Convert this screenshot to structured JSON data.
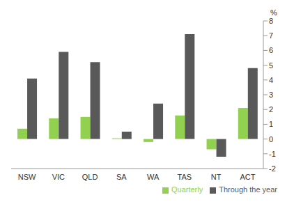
{
  "chart_data": {
    "type": "bar",
    "y_label": "%",
    "categories": [
      "NSW",
      "VIC",
      "QLD",
      "SA",
      "WA",
      "TAS",
      "NT",
      "ACT"
    ],
    "series": [
      {
        "name": "Quarterly",
        "color": "#92d050",
        "values": [
          0.7,
          1.4,
          1.5,
          0.05,
          -0.2,
          1.6,
          -0.7,
          2.1
        ]
      },
      {
        "name": "Through the year",
        "color": "#595959",
        "values": [
          4.1,
          5.9,
          5.2,
          0.5,
          2.4,
          7.1,
          -1.2,
          4.8
        ]
      }
    ],
    "ylim": [
      -2,
      8
    ],
    "yticks": [
      -2,
      -1,
      0,
      1,
      2,
      3,
      4,
      5,
      6,
      7,
      8
    ],
    "grid": false,
    "legend": "bottom-right"
  }
}
